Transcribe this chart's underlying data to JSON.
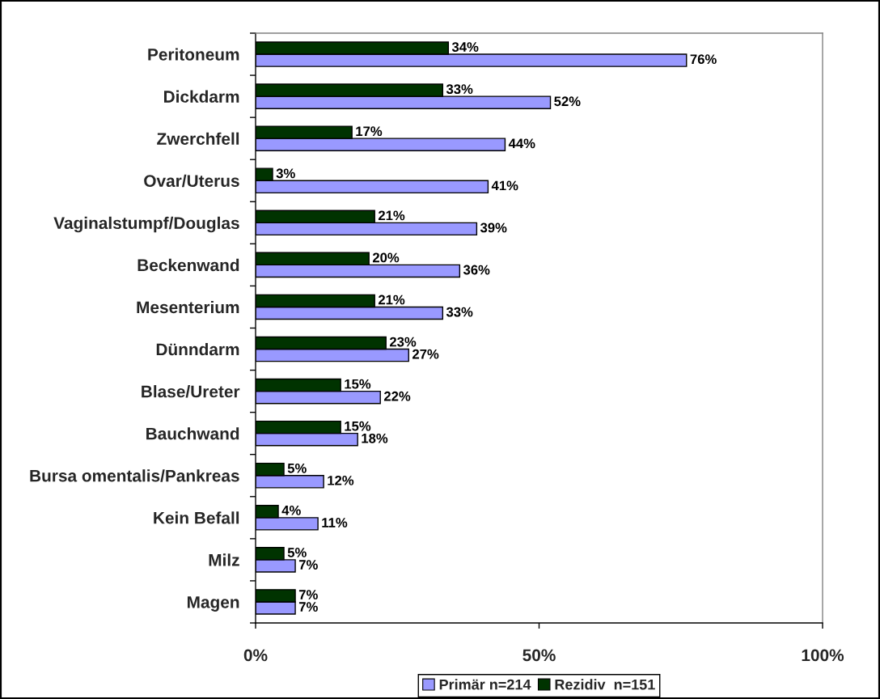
{
  "chart_data": {
    "type": "bar",
    "orientation": "horizontal",
    "categories": [
      "Peritoneum",
      "Dickdarm",
      "Zwerchfell",
      "Ovar/Uterus",
      "Vaginalstumpf/Douglas",
      "Beckenwand",
      "Mesenterium",
      "Dünndarm",
      "Blase/Ureter",
      "Bauchwand",
      "Bursa omentalis/Pankreas",
      "Kein Befall",
      "Milz",
      "Magen"
    ],
    "series": [
      {
        "name": "Primär n=214",
        "color": "#9999ff",
        "values": [
          76,
          52,
          44,
          41,
          39,
          36,
          33,
          27,
          22,
          18,
          12,
          11,
          7,
          7
        ],
        "value_labels": [
          "76%",
          "52%",
          "44%",
          "41%",
          "39%",
          "36%",
          "33%",
          "27%",
          "22%",
          "18%",
          "12%",
          "11%",
          "7%",
          "7%"
        ]
      },
      {
        "name": "Rezidiv  n=151",
        "color": "#003300",
        "values": [
          34,
          33,
          17,
          3,
          21,
          20,
          21,
          23,
          15,
          15,
          5,
          4,
          5,
          7
        ],
        "value_labels": [
          "34%",
          "33%",
          "17%",
          "3%",
          "21%",
          "20%",
          "21%",
          "23%",
          "15%",
          "15%",
          "5%",
          "4%",
          "5%",
          "7%"
        ]
      }
    ],
    "xlim": [
      0,
      100
    ],
    "xticks": [
      {
        "value": 0,
        "label": "0%"
      },
      {
        "value": 50,
        "label": "50%"
      },
      {
        "value": 100,
        "label": "100%"
      }
    ],
    "grid": false,
    "legend": "bottom"
  }
}
